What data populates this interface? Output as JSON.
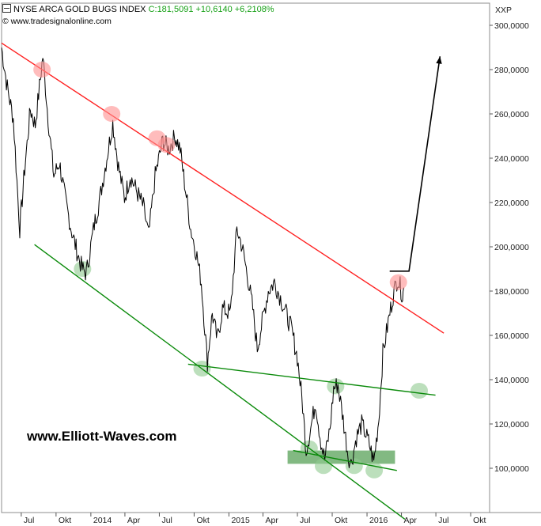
{
  "header": {
    "symbol_icon": "minus-box-icon",
    "instrument": "NYSE ARCA GOLD BUGS INDEX",
    "last": "C:181,5091 +10,6140 +6,2108%",
    "source": "© www.tradesignalonline.com",
    "watermark": "www.Elliott-Waves.com"
  },
  "chart_data": {
    "type": "line",
    "title": "NYSE ARCA GOLD BUGS INDEX",
    "y_axis_label": "XXP",
    "ylim": [
      80,
      310
    ],
    "y_ticks": [
      "100,0000",
      "120,0000",
      "140,0000",
      "160,0000",
      "180,0000",
      "200,0000",
      "220,0000",
      "240,0000",
      "260,0000",
      "280,0000",
      "300,0000"
    ],
    "y_tick_values": [
      100,
      120,
      140,
      160,
      180,
      200,
      220,
      240,
      260,
      280,
      300
    ],
    "x_ticks": [
      "Jul",
      "Okt",
      "2014",
      "Apr",
      "Jul",
      "Okt",
      "2015",
      "Apr",
      "Jul",
      "Okt",
      "2016",
      "Apr",
      "Jul",
      "Okt"
    ],
    "x_tick_dates": [
      "2013-07-01",
      "2013-10-01",
      "2014-01-01",
      "2014-04-01",
      "2014-07-01",
      "2014-10-01",
      "2015-01-01",
      "2015-04-01",
      "2015-07-01",
      "2015-10-01",
      "2016-01-01",
      "2016-04-01",
      "2016-07-01",
      "2016-10-01"
    ],
    "xlim": [
      "2013-05-10",
      "2016-11-20"
    ],
    "grid": false,
    "series": [
      {
        "values": [
          [
            "2013-05-10",
            290
          ],
          [
            "2013-05-25",
            272
          ],
          [
            "2013-06-10",
            258
          ],
          [
            "2013-06-27",
            208
          ],
          [
            "2013-07-10",
            235
          ],
          [
            "2013-07-25",
            262
          ],
          [
            "2013-08-07",
            255
          ],
          [
            "2013-08-27",
            286
          ],
          [
            "2013-09-10",
            258
          ],
          [
            "2013-09-25",
            232
          ],
          [
            "2013-10-10",
            238
          ],
          [
            "2013-10-25",
            222
          ],
          [
            "2013-11-10",
            208
          ],
          [
            "2013-11-25",
            198
          ],
          [
            "2013-12-09",
            190
          ],
          [
            "2013-12-20",
            188
          ],
          [
            "2014-01-10",
            210
          ],
          [
            "2014-01-25",
            222
          ],
          [
            "2014-02-10",
            238
          ],
          [
            "2014-02-28",
            256
          ],
          [
            "2014-03-15",
            236
          ],
          [
            "2014-03-31",
            222
          ],
          [
            "2014-04-15",
            232
          ],
          [
            "2014-05-05",
            224
          ],
          [
            "2014-05-20",
            218
          ],
          [
            "2014-06-03",
            205
          ],
          [
            "2014-06-20",
            232
          ],
          [
            "2014-07-10",
            248
          ],
          [
            "2014-07-25",
            244
          ],
          [
            "2014-08-12",
            250
          ],
          [
            "2014-08-25",
            244
          ],
          [
            "2014-09-08",
            226
          ],
          [
            "2014-09-22",
            208
          ],
          [
            "2014-10-06",
            198
          ],
          [
            "2014-10-20",
            184
          ],
          [
            "2014-11-05",
            148
          ],
          [
            "2014-11-18",
            170
          ],
          [
            "2014-12-01",
            158
          ],
          [
            "2014-12-15",
            172
          ],
          [
            "2015-01-05",
            170
          ],
          [
            "2015-01-22",
            208
          ],
          [
            "2015-02-05",
            200
          ],
          [
            "2015-02-20",
            186
          ],
          [
            "2015-03-05",
            172
          ],
          [
            "2015-03-17",
            154
          ],
          [
            "2015-04-01",
            168
          ],
          [
            "2015-04-15",
            180
          ],
          [
            "2015-05-01",
            184
          ],
          [
            "2015-05-15",
            178
          ],
          [
            "2015-06-01",
            170
          ],
          [
            "2015-06-15",
            163
          ],
          [
            "2015-07-01",
            150
          ],
          [
            "2015-07-15",
            128
          ],
          [
            "2015-07-24",
            108
          ],
          [
            "2015-08-05",
            118
          ],
          [
            "2015-08-18",
            130
          ],
          [
            "2015-09-01",
            112
          ],
          [
            "2015-09-11",
            104
          ],
          [
            "2015-09-25",
            118
          ],
          [
            "2015-10-05",
            136
          ],
          [
            "2015-10-16",
            138
          ],
          [
            "2015-10-30",
            122
          ],
          [
            "2015-11-12",
            106
          ],
          [
            "2015-11-20",
            102
          ],
          [
            "2015-12-04",
            114
          ],
          [
            "2015-12-18",
            120
          ],
          [
            "2016-01-05",
            112
          ],
          [
            "2016-01-19",
            103
          ],
          [
            "2016-02-01",
            122
          ],
          [
            "2016-02-12",
            152
          ],
          [
            "2016-02-26",
            166
          ],
          [
            "2016-03-10",
            178
          ],
          [
            "2016-03-22",
            186
          ],
          [
            "2016-04-04",
            178
          ],
          [
            "2016-04-08",
            181.5
          ]
        ]
      }
    ],
    "annotations": {
      "resistance_line": {
        "color": "#ff2020",
        "from": [
          "2013-05-10",
          292
        ],
        "to": [
          "2016-07-22",
          161
        ]
      },
      "support_line_lower": {
        "color": "#0a8a0a",
        "from": [
          "2013-08-05",
          201
        ],
        "to": [
          "2016-04-10",
          77
        ]
      },
      "support_line_middle": {
        "color": "#0a8a0a",
        "from": [
          "2014-09-15",
          147
        ],
        "to": [
          "2016-06-30",
          133
        ]
      },
      "support_line_bottom": {
        "color": "#0a8a0a",
        "from": [
          "2015-06-20",
          108
        ],
        "to": [
          "2016-03-20",
          99
        ]
      },
      "support_zone": {
        "color": "#2e8b2e",
        "from_date": "2015-06-05",
        "to_date": "2016-03-15",
        "low": 102,
        "high": 108
      },
      "forecast_path": {
        "color": "#000000",
        "points": [
          [
            "2016-03-01",
            189
          ],
          [
            "2016-04-21",
            189
          ],
          [
            "2016-07-12",
            286
          ]
        ]
      },
      "touch_points_red": {
        "color": "#ff9090",
        "points": [
          [
            "2013-08-25",
            280
          ],
          [
            "2014-02-25",
            260
          ],
          [
            "2014-06-25",
            249
          ],
          [
            "2014-07-20",
            246
          ],
          [
            "2016-03-24",
            184
          ]
        ]
      },
      "touch_points_green": {
        "color": "#8fca8f",
        "points": [
          [
            "2013-12-10",
            190
          ],
          [
            "2014-10-22",
            145
          ],
          [
            "2015-08-01",
            109
          ],
          [
            "2015-09-08",
            101
          ],
          [
            "2015-10-10",
            137
          ],
          [
            "2015-11-28",
            101
          ],
          [
            "2016-01-20",
            99
          ],
          [
            "2016-05-18",
            135
          ]
        ]
      }
    }
  }
}
